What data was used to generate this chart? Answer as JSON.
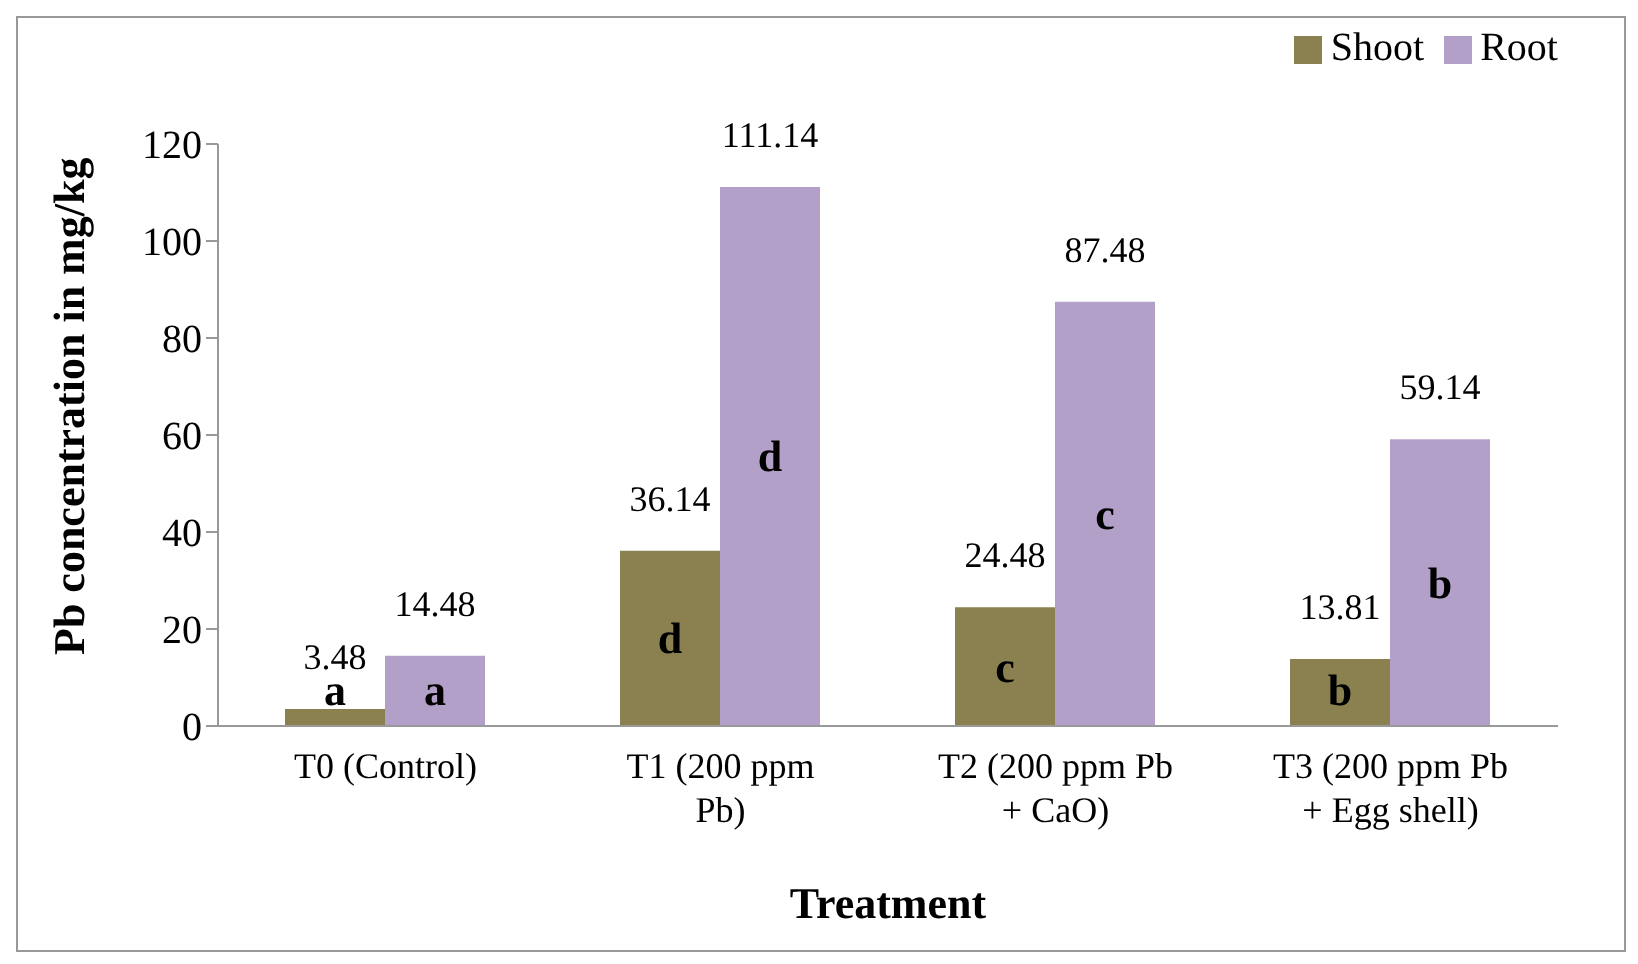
{
  "chart_data": {
    "type": "bar",
    "categories": [
      "T0 (Control)",
      "T1 (200 ppm Pb)",
      "T2 (200 ppm Pb + CaO)",
      "T3 (200 ppm Pb + Egg shell)"
    ],
    "series": [
      {
        "name": "Shoot",
        "color": "#8b8050",
        "values": [
          3.48,
          36.14,
          24.48,
          13.81
        ]
      },
      {
        "name": "Root",
        "color": "#b3a0c8",
        "values": [
          14.48,
          111.14,
          87.48,
          59.14
        ]
      }
    ],
    "ylim": [
      0,
      120
    ],
    "yticks": [
      0,
      20,
      40,
      60,
      80,
      100,
      120
    ],
    "xlabel": "Treatment",
    "ylabel": "Pb concentration in mg/kg",
    "legend": "top right",
    "grid": false,
    "data_labels": true,
    "annotations": [
      "a",
      "d",
      "c",
      "b",
      "a",
      "d",
      "c",
      "b"
    ]
  }
}
